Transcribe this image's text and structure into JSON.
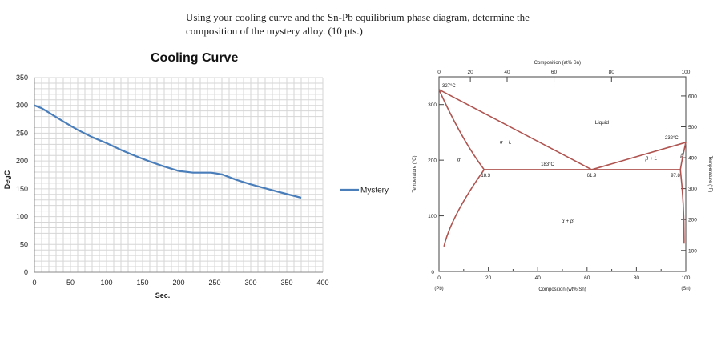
{
  "question": {
    "line1": "Using your cooling curve and the Sn-Pb equilibrium phase diagram, determine the",
    "line2": "composition of the mystery alloy. (10 pts.)"
  },
  "chart_data": [
    {
      "type": "line",
      "title": "Cooling Curve",
      "xlabel": "Sec.",
      "ylabel": "DegC",
      "xlim": [
        0,
        400
      ],
      "ylim": [
        0,
        350
      ],
      "x_ticks": [
        0,
        50,
        100,
        150,
        200,
        250,
        300,
        350,
        400
      ],
      "y_ticks": [
        0,
        50,
        100,
        150,
        200,
        250,
        300,
        350
      ],
      "grid": true,
      "legend": "right",
      "series": [
        {
          "name": "Mystery",
          "color": "#4a7ebb",
          "x": [
            0,
            10,
            20,
            40,
            60,
            80,
            100,
            120,
            140,
            160,
            180,
            200,
            220,
            230,
            245,
            260,
            280,
            300,
            320,
            340,
            370
          ],
          "y": [
            300,
            295,
            287,
            271,
            256,
            243,
            232,
            220,
            209,
            199,
            190,
            182,
            179,
            179,
            179,
            176,
            166,
            158,
            151,
            144,
            134
          ]
        }
      ]
    },
    {
      "type": "line",
      "title": "",
      "top_axis_label": "Composition (at% Sn)",
      "xlabel": "Composition (wt% Sn)",
      "ylabel": "Temperature (°C)",
      "right_ylabel": "Temperature (°F)",
      "xlim": [
        0,
        100
      ],
      "ylim": [
        0,
        350
      ],
      "bottom_ticks": [
        "0",
        "20",
        "40",
        "60",
        "80",
        "100"
      ],
      "bottom_tick_values": [
        0,
        20,
        40,
        60,
        80,
        100
      ],
      "top_ticks": [
        "0",
        "20",
        "40",
        "60",
        "80",
        "100"
      ],
      "top_tick_wt_positions": [
        0,
        12.7,
        27.6,
        46.6,
        69.9,
        100
      ],
      "left_ticks": [
        0,
        100,
        200,
        300
      ],
      "right_ticks_F": [
        100,
        200,
        300,
        400,
        500,
        600
      ],
      "endpoint_labels": {
        "left": "(Pb)",
        "right": "(Sn)"
      },
      "color": "#b05450",
      "points": {
        "pb_melting": {
          "x": 0,
          "y": 327,
          "label": "327°C"
        },
        "sn_melting": {
          "x": 100,
          "y": 232,
          "label": "232°C"
        },
        "alpha_max": {
          "x": 18.3,
          "y": 183,
          "label": "18.3"
        },
        "eutectic": {
          "x": 61.9,
          "y": 183,
          "label": "61.9"
        },
        "beta_max": {
          "x": 97.8,
          "y": 183,
          "label": "97.8"
        },
        "eutectic_temp_label": "183°C"
      },
      "region_labels": {
        "liquid": "Liquid",
        "alpha_plus_liquid": "α + L",
        "beta_plus_liquid": "β + L",
        "alpha": "α",
        "beta": "β",
        "alpha_plus_beta": "α + β"
      }
    }
  ]
}
